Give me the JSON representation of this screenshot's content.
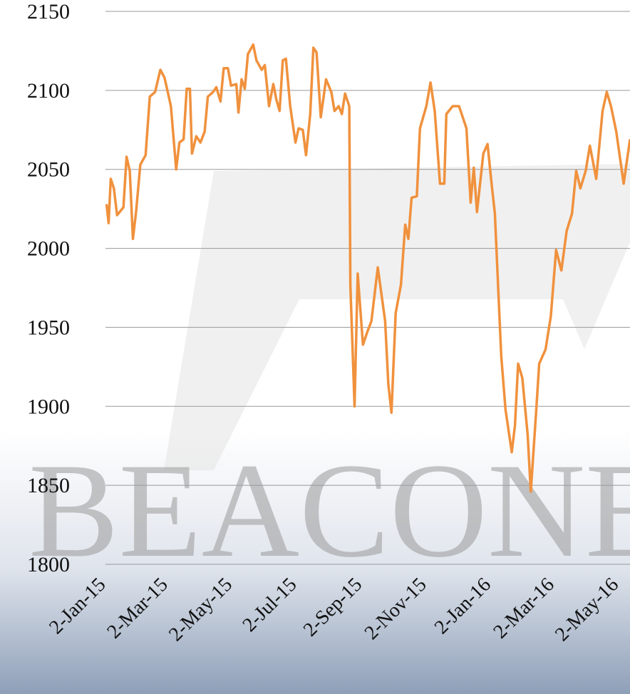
{
  "watermark": "BEACONE",
  "chart_data": {
    "type": "line",
    "x": [
      "2015-01-02",
      "2015-01-04",
      "2015-01-06",
      "2015-01-09",
      "2015-01-12",
      "2015-01-18",
      "2015-01-21",
      "2015-01-24",
      "2015-01-27",
      "2015-01-30",
      "2015-02-03",
      "2015-02-08",
      "2015-02-12",
      "2015-02-17",
      "2015-02-22",
      "2015-02-26",
      "2015-03-04",
      "2015-03-09",
      "2015-03-12",
      "2015-03-16",
      "2015-03-19",
      "2015-03-22",
      "2015-03-24",
      "2015-03-28",
      "2015-04-01",
      "2015-04-05",
      "2015-04-08",
      "2015-04-13",
      "2015-04-16",
      "2015-04-20",
      "2015-04-23",
      "2015-04-27",
      "2015-04-30",
      "2015-05-05",
      "2015-05-07",
      "2015-05-10",
      "2015-05-13",
      "2015-05-16",
      "2015-05-21",
      "2015-05-24",
      "2015-05-29",
      "2015-06-01",
      "2015-06-05",
      "2015-06-09",
      "2015-06-12",
      "2015-06-15",
      "2015-06-18",
      "2015-06-21",
      "2015-06-25",
      "2015-06-30",
      "2015-07-03",
      "2015-07-07",
      "2015-07-10",
      "2015-07-14",
      "2015-07-17",
      "2015-07-20",
      "2015-07-24",
      "2015-07-29",
      "2015-08-03",
      "2015-08-06",
      "2015-08-10",
      "2015-08-13",
      "2015-08-16",
      "2015-08-20",
      "2015-08-21",
      "2015-08-25",
      "2015-08-28",
      "2015-09-02",
      "2015-09-06",
      "2015-09-10",
      "2015-09-16",
      "2015-09-23",
      "2015-09-26",
      "2015-09-29",
      "2015-10-03",
      "2015-10-08",
      "2015-10-12",
      "2015-10-15",
      "2015-10-18",
      "2015-10-23",
      "2015-10-26",
      "2015-11-01",
      "2015-11-05",
      "2015-11-09",
      "2015-11-14",
      "2015-11-18",
      "2015-11-20",
      "2015-11-26",
      "2015-12-02",
      "2015-12-09",
      "2015-12-13",
      "2015-12-16",
      "2015-12-19",
      "2015-12-25",
      "2015-12-29",
      "2016-01-02",
      "2016-01-05",
      "2016-01-11",
      "2016-01-15",
      "2016-01-21",
      "2016-01-24",
      "2016-01-27",
      "2016-01-31",
      "2016-02-05",
      "2016-02-08",
      "2016-02-13",
      "2016-02-16",
      "2016-02-22",
      "2016-02-27",
      "2016-03-03",
      "2016-03-08",
      "2016-03-13",
      "2016-03-18",
      "2016-03-22",
      "2016-03-26",
      "2016-03-31",
      "2016-04-04",
      "2016-04-10",
      "2016-04-16",
      "2016-04-20",
      "2016-04-24",
      "2016-04-29",
      "2016-05-06",
      "2016-05-12"
    ],
    "series": [
      {
        "color": "#f0913d",
        "values": [
          2028,
          2016,
          2044,
          2038,
          2021,
          2026,
          2058,
          2049,
          2006,
          2023,
          2053,
          2059,
          2096,
          2099,
          2113,
          2108,
          2090,
          2050,
          2067,
          2069,
          2101,
          2101,
          2060,
          2071,
          2067,
          2074,
          2096,
          2099,
          2102,
          2093,
          2114,
          2114,
          2103,
          2104,
          2086,
          2107,
          2101,
          2123,
          2129,
          2119,
          2113,
          2116,
          2090,
          2104,
          2094,
          2087,
          2119,
          2120,
          2090,
          2067,
          2076,
          2075,
          2059,
          2085,
          2127,
          2124,
          2083,
          2107,
          2099,
          2087,
          2090,
          2085,
          2098,
          2090,
          1977,
          1900,
          1984,
          1939,
          1947,
          1954,
          1988,
          1954,
          1914,
          1896,
          1959,
          1977,
          2015,
          2006,
          2032,
          2033,
          2076,
          2090,
          2105,
          2087,
          2041,
          2041,
          2085,
          2090,
          2090,
          2076,
          2029,
          2051,
          2023,
          2060,
          2066,
          2040,
          2022,
          1932,
          1898,
          1871,
          1888,
          1927,
          1918,
          1882,
          1846,
          1896,
          1927,
          1936,
          1957,
          1999,
          1986,
          2011,
          2022,
          2049,
          2038,
          2049,
          2065,
          2044,
          2087,
          2099,
          2090,
          2074,
          2041,
          2069
        ]
      }
    ],
    "xlim": [
      "2015-01-01",
      "2016-05-12"
    ],
    "xticks": [
      {
        "value": "2015-01-02",
        "label": "2-Jan-15"
      },
      {
        "value": "2015-03-02",
        "label": "2-Mar-15"
      },
      {
        "value": "2015-05-02",
        "label": "2-May-15"
      },
      {
        "value": "2015-07-02",
        "label": "2-Jul-15"
      },
      {
        "value": "2015-09-02",
        "label": "2-Sep-15"
      },
      {
        "value": "2015-11-02",
        "label": "2-Nov-15"
      },
      {
        "value": "2016-01-02",
        "label": "2-Jan-16"
      },
      {
        "value": "2016-03-02",
        "label": "2-Mar-16"
      },
      {
        "value": "2016-05-02",
        "label": "2-May-16"
      }
    ],
    "ylim": [
      1800,
      2150
    ],
    "yticks": [
      1800,
      1850,
      1900,
      1950,
      2000,
      2050,
      2100,
      2150
    ],
    "grid": true
  }
}
